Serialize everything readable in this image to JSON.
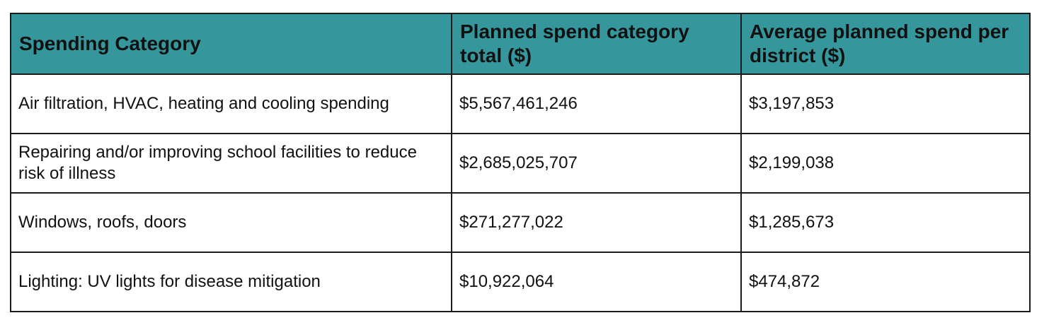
{
  "table": {
    "headers": [
      "Spending Category",
      "Planned spend category total ($)",
      "Average planned spend per district ($)"
    ],
    "rows": [
      [
        "Air filtration, HVAC, heating and cooling spending",
        "$5,567,461,246",
        "$3,197,853"
      ],
      [
        "Repairing and/or improving school facilities to reduce risk of illness",
        "$2,685,025,707",
        "$2,199,038"
      ],
      [
        "Windows, roofs, doors",
        "$271,277,022",
        "$1,285,673"
      ],
      [
        "Lighting: UV lights for disease mitigation",
        "$10,922,064",
        "$474,872"
      ]
    ]
  },
  "colors": {
    "header_background": "#35969b",
    "border": "#1a1a1a",
    "text": "#111111"
  }
}
